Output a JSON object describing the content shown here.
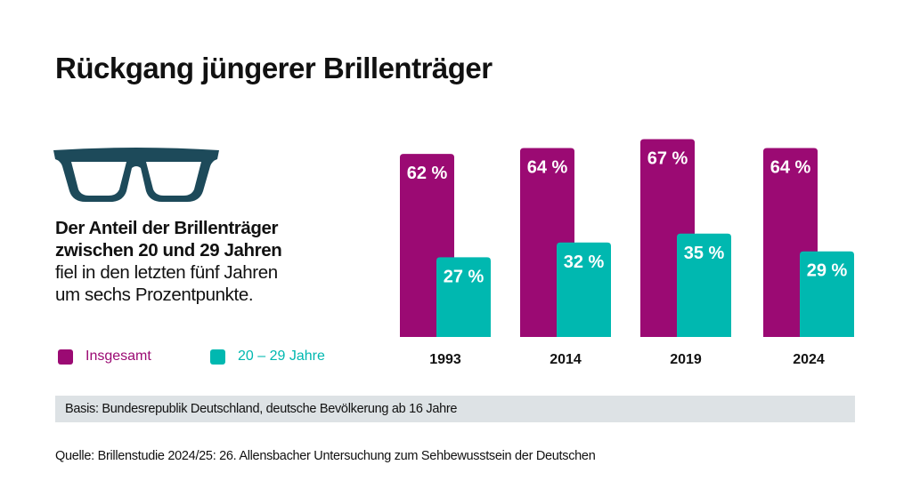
{
  "title": "Rückgang jüngerer Brillenträger",
  "description": {
    "bold_lines": [
      "Der Anteil der Brillenträger",
      "zwischen 20 und 29 Jahren"
    ],
    "lines": [
      "fiel in den letzten fünf Jahren",
      "um sechs Prozentpunkte."
    ]
  },
  "icon": "eyeglasses-icon",
  "colors": {
    "insgesamt": "#9b0a73",
    "jahre": "#00b8b0",
    "glasses": "#1d4a5a"
  },
  "chart_data": {
    "type": "bar",
    "categories": [
      "1993",
      "2014",
      "2019",
      "2024"
    ],
    "series": [
      {
        "name": "Insgesamt",
        "values": [
          62,
          64,
          67,
          64
        ],
        "labels": [
          "62 %",
          "64 %",
          "67 %",
          "64 %"
        ]
      },
      {
        "name": "20 – 29 Jahre",
        "values": [
          27,
          32,
          35,
          29
        ],
        "labels": [
          "27 %",
          "32 %",
          "35 %",
          "29 %"
        ]
      }
    ],
    "unit": "%",
    "ylim": [
      0,
      100
    ],
    "legend": "bottom-left"
  },
  "basis": "Basis: Bundesrepublik Deutschland, deutsche Bevölkerung ab 16 Jahre",
  "source": "Quelle:  Brillenstudie 2024/25: 26. Allensbacher Untersuchung zum Sehbewusstsein der Deutschen"
}
